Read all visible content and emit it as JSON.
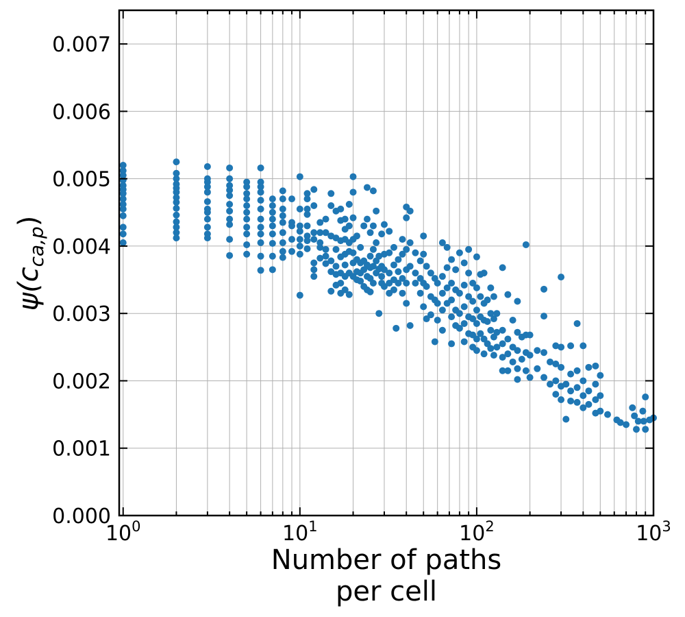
{
  "chart_data": {
    "type": "scatter",
    "xscale": "log",
    "xlim": [
      0.95,
      1000
    ],
    "ylim": [
      0,
      0.0075
    ],
    "grid": true,
    "xlabel_lines": [
      "Number of paths",
      "per cell"
    ],
    "ylabel": "ψ(c_{ca,p})",
    "xticks": [
      {
        "value": 1,
        "base": "10",
        "exp": "0"
      },
      {
        "value": 10,
        "base": "10",
        "exp": "1"
      },
      {
        "value": 100,
        "base": "10",
        "exp": "2"
      },
      {
        "value": 1000,
        "base": "10",
        "exp": "3"
      }
    ],
    "yticks": [
      {
        "value": 0.0,
        "label": "0.000"
      },
      {
        "value": 0.001,
        "label": "0.001"
      },
      {
        "value": 0.002,
        "label": "0.002"
      },
      {
        "value": 0.003,
        "label": "0.003"
      },
      {
        "value": 0.004,
        "label": "0.004"
      },
      {
        "value": 0.005,
        "label": "0.005"
      },
      {
        "value": 0.006,
        "label": "0.006"
      },
      {
        "value": 0.007,
        "label": "0.007"
      }
    ],
    "marker_color": "#1f77b4",
    "points": [
      [
        1,
        0.0052
      ],
      [
        1,
        0.00512
      ],
      [
        1,
        0.00505
      ],
      [
        1,
        0.00498
      ],
      [
        1,
        0.0049
      ],
      [
        1,
        0.00484
      ],
      [
        1,
        0.00478
      ],
      [
        1,
        0.0047
      ],
      [
        1,
        0.00462
      ],
      [
        1,
        0.00455
      ],
      [
        1,
        0.00445
      ],
      [
        1,
        0.00428
      ],
      [
        1,
        0.00418
      ],
      [
        1,
        0.00405
      ],
      [
        2,
        0.00525
      ],
      [
        2,
        0.00508
      ],
      [
        2,
        0.005
      ],
      [
        2,
        0.00492
      ],
      [
        2,
        0.00486
      ],
      [
        2,
        0.0048
      ],
      [
        2,
        0.00472
      ],
      [
        2,
        0.00465
      ],
      [
        2,
        0.00456
      ],
      [
        2,
        0.00446
      ],
      [
        2,
        0.00436
      ],
      [
        2,
        0.00428
      ],
      [
        2,
        0.0042
      ],
      [
        2,
        0.00412
      ],
      [
        3,
        0.00518
      ],
      [
        3,
        0.005
      ],
      [
        3,
        0.00495
      ],
      [
        3,
        0.00488
      ],
      [
        3,
        0.0048
      ],
      [
        3,
        0.00466
      ],
      [
        3,
        0.00455
      ],
      [
        3,
        0.0045
      ],
      [
        3,
        0.0044
      ],
      [
        3,
        0.00428
      ],
      [
        3,
        0.00418
      ],
      [
        3,
        0.00412
      ],
      [
        4,
        0.00516
      ],
      [
        4,
        0.005
      ],
      [
        4,
        0.0049
      ],
      [
        4,
        0.00483
      ],
      [
        4,
        0.00475
      ],
      [
        4,
        0.00462
      ],
      [
        4,
        0.00452
      ],
      [
        4,
        0.0044
      ],
      [
        4,
        0.00432
      ],
      [
        4,
        0.0041
      ],
      [
        4,
        0.00386
      ],
      [
        5,
        0.00495
      ],
      [
        5,
        0.00488
      ],
      [
        5,
        0.00478
      ],
      [
        5,
        0.0047
      ],
      [
        5,
        0.0046
      ],
      [
        5,
        0.0045
      ],
      [
        5,
        0.0044
      ],
      [
        5,
        0.00428
      ],
      [
        5,
        0.00418
      ],
      [
        5,
        0.00402
      ],
      [
        5,
        0.00388
      ],
      [
        6,
        0.00516
      ],
      [
        6,
        0.00495
      ],
      [
        6,
        0.00488
      ],
      [
        6,
        0.0048
      ],
      [
        6,
        0.00468
      ],
      [
        6,
        0.00455
      ],
      [
        6,
        0.0044
      ],
      [
        6,
        0.00428
      ],
      [
        6,
        0.00418
      ],
      [
        6,
        0.00405
      ],
      [
        6,
        0.00385
      ],
      [
        6,
        0.00364
      ],
      [
        7,
        0.0047
      ],
      [
        7,
        0.0046
      ],
      [
        7,
        0.0045
      ],
      [
        7,
        0.0044
      ],
      [
        7,
        0.0043
      ],
      [
        7,
        0.00418
      ],
      [
        7,
        0.00404
      ],
      [
        7,
        0.00385
      ],
      [
        7,
        0.00365
      ],
      [
        8,
        0.00482
      ],
      [
        8,
        0.0047
      ],
      [
        8,
        0.00455
      ],
      [
        8,
        0.00445
      ],
      [
        8,
        0.00435
      ],
      [
        8,
        0.0042
      ],
      [
        8,
        0.00405
      ],
      [
        8,
        0.00392
      ],
      [
        8,
        0.00383
      ],
      [
        9,
        0.0047
      ],
      [
        9,
        0.00435
      ],
      [
        9,
        0.0043
      ],
      [
        9,
        0.0041
      ],
      [
        9,
        0.00392
      ],
      [
        10,
        0.00503
      ],
      [
        10,
        0.00455
      ],
      [
        10,
        0.0043
      ],
      [
        10,
        0.00422
      ],
      [
        10,
        0.0041
      ],
      [
        10,
        0.004
      ],
      [
        10,
        0.00388
      ],
      [
        10,
        0.00327
      ],
      [
        11,
        0.00478
      ],
      [
        11,
        0.0047
      ],
      [
        11,
        0.00455
      ],
      [
        11,
        0.00447
      ],
      [
        11,
        0.0043
      ],
      [
        11,
        0.00415
      ],
      [
        11,
        0.00408
      ],
      [
        11,
        0.00396
      ],
      [
        12,
        0.00484
      ],
      [
        12,
        0.0046
      ],
      [
        12,
        0.0042
      ],
      [
        12,
        0.0041
      ],
      [
        12,
        0.00375
      ],
      [
        12,
        0.00365
      ],
      [
        12,
        0.00355
      ],
      [
        13,
        0.00435
      ],
      [
        13,
        0.0042
      ],
      [
        13,
        0.00405
      ],
      [
        13,
        0.00398
      ],
      [
        13,
        0.00382
      ],
      [
        14,
        0.0044
      ],
      [
        14,
        0.0042
      ],
      [
        14,
        0.00395
      ],
      [
        14,
        0.00385
      ],
      [
        14,
        0.00374
      ],
      [
        15,
        0.00478
      ],
      [
        15,
        0.0046
      ],
      [
        15,
        0.00415
      ],
      [
        15,
        0.00378
      ],
      [
        15,
        0.00362
      ],
      [
        15,
        0.00333
      ],
      [
        16,
        0.00452
      ],
      [
        16,
        0.00412
      ],
      [
        16,
        0.00395
      ],
      [
        16,
        0.0037
      ],
      [
        16,
        0.00358
      ],
      [
        16,
        0.00342
      ],
      [
        17,
        0.00455
      ],
      [
        17,
        0.00438
      ],
      [
        17,
        0.00408
      ],
      [
        17,
        0.00384
      ],
      [
        17,
        0.0036
      ],
      [
        17,
        0.00345
      ],
      [
        17,
        0.0033
      ],
      [
        18,
        0.0044
      ],
      [
        18,
        0.00425
      ],
      [
        18,
        0.0041
      ],
      [
        18,
        0.00388
      ],
      [
        18,
        0.00372
      ],
      [
        18,
        0.00355
      ],
      [
        18,
        0.00335
      ],
      [
        19,
        0.00462
      ],
      [
        19,
        0.0043
      ],
      [
        19,
        0.00405
      ],
      [
        19,
        0.00392
      ],
      [
        19,
        0.0036
      ],
      [
        19,
        0.00328
      ],
      [
        20,
        0.00503
      ],
      [
        20,
        0.0048
      ],
      [
        20,
        0.00442
      ],
      [
        20,
        0.0041
      ],
      [
        20,
        0.0039
      ],
      [
        20,
        0.00375
      ],
      [
        20,
        0.00355
      ],
      [
        21,
        0.00415
      ],
      [
        21,
        0.0038
      ],
      [
        21,
        0.00362
      ],
      [
        21,
        0.0035
      ],
      [
        22,
        0.00398
      ],
      [
        22,
        0.00375
      ],
      [
        22,
        0.0036
      ],
      [
        22,
        0.00348
      ],
      [
        23,
        0.0043
      ],
      [
        23,
        0.00378
      ],
      [
        23,
        0.00365
      ],
      [
        23,
        0.0034
      ],
      [
        24,
        0.00487
      ],
      [
        24,
        0.0044
      ],
      [
        24,
        0.00372
      ],
      [
        24,
        0.00355
      ],
      [
        24,
        0.00335
      ],
      [
        25,
        0.0042
      ],
      [
        25,
        0.00385
      ],
      [
        25,
        0.00368
      ],
      [
        25,
        0.00352
      ],
      [
        25,
        0.00332
      ],
      [
        26,
        0.00482
      ],
      [
        26,
        0.0043
      ],
      [
        26,
        0.00395
      ],
      [
        26,
        0.0037
      ],
      [
        26,
        0.00345
      ],
      [
        27,
        0.00452
      ],
      [
        27,
        0.00405
      ],
      [
        27,
        0.00378
      ],
      [
        27,
        0.0036
      ],
      [
        28,
        0.00385
      ],
      [
        28,
        0.00366
      ],
      [
        28,
        0.003
      ],
      [
        29,
        0.00418
      ],
      [
        29,
        0.0037
      ],
      [
        29,
        0.00355
      ],
      [
        29,
        0.00345
      ],
      [
        30,
        0.00432
      ],
      [
        30,
        0.00388
      ],
      [
        30,
        0.00365
      ],
      [
        30,
        0.0034
      ],
      [
        32,
        0.00422
      ],
      [
        32,
        0.0039
      ],
      [
        32,
        0.0036
      ],
      [
        32,
        0.00345
      ],
      [
        32,
        0.0033
      ],
      [
        34,
        0.00398
      ],
      [
        34,
        0.00372
      ],
      [
        34,
        0.0035
      ],
      [
        34,
        0.00335
      ],
      [
        35,
        0.00278
      ],
      [
        36,
        0.0038
      ],
      [
        36,
        0.00362
      ],
      [
        36,
        0.00345
      ],
      [
        38,
        0.0041
      ],
      [
        38,
        0.00388
      ],
      [
        38,
        0.00352
      ],
      [
        38,
        0.0033
      ],
      [
        40,
        0.00458
      ],
      [
        40,
        0.00442
      ],
      [
        40,
        0.00395
      ],
      [
        40,
        0.00365
      ],
      [
        40,
        0.00345
      ],
      [
        40,
        0.00315
      ],
      [
        42,
        0.00452
      ],
      [
        42,
        0.00405
      ],
      [
        42,
        0.0037
      ],
      [
        42,
        0.00282
      ],
      [
        45,
        0.0039
      ],
      [
        45,
        0.0036
      ],
      [
        45,
        0.00345
      ],
      [
        48,
        0.00378
      ],
      [
        48,
        0.00352
      ],
      [
        48,
        0.0033
      ],
      [
        50,
        0.00415
      ],
      [
        50,
        0.00388
      ],
      [
        50,
        0.00345
      ],
      [
        50,
        0.0031
      ],
      [
        52,
        0.0037
      ],
      [
        52,
        0.0034
      ],
      [
        52,
        0.00292
      ],
      [
        55,
        0.0036
      ],
      [
        55,
        0.00325
      ],
      [
        55,
        0.00298
      ],
      [
        58,
        0.00352
      ],
      [
        58,
        0.0032
      ],
      [
        58,
        0.00258
      ],
      [
        60,
        0.00345
      ],
      [
        60,
        0.00315
      ],
      [
        60,
        0.0029
      ],
      [
        64,
        0.00405
      ],
      [
        64,
        0.00355
      ],
      [
        64,
        0.0033
      ],
      [
        64,
        0.00305
      ],
      [
        64,
        0.00275
      ],
      [
        68,
        0.00398
      ],
      [
        68,
        0.00368
      ],
      [
        68,
        0.00338
      ],
      [
        68,
        0.00315
      ],
      [
        72,
        0.0038
      ],
      [
        72,
        0.00345
      ],
      [
        72,
        0.0032
      ],
      [
        72,
        0.00295
      ],
      [
        72,
        0.00255
      ],
      [
        76,
        0.00365
      ],
      [
        76,
        0.00335
      ],
      [
        76,
        0.00305
      ],
      [
        76,
        0.00282
      ],
      [
        80,
        0.0039
      ],
      [
        80,
        0.0033
      ],
      [
        80,
        0.003
      ],
      [
        80,
        0.00278
      ],
      [
        85,
        0.00375
      ],
      [
        85,
        0.00342
      ],
      [
        85,
        0.0031
      ],
      [
        85,
        0.00285
      ],
      [
        85,
        0.00258
      ],
      [
        90,
        0.00395
      ],
      [
        90,
        0.0036
      ],
      [
        90,
        0.00325
      ],
      [
        90,
        0.00295
      ],
      [
        90,
        0.0027
      ],
      [
        95,
        0.00345
      ],
      [
        95,
        0.00318
      ],
      [
        95,
        0.00292
      ],
      [
        95,
        0.00268
      ],
      [
        95,
        0.0025
      ],
      [
        100,
        0.00384
      ],
      [
        100,
        0.00338
      ],
      [
        100,
        0.00305
      ],
      [
        100,
        0.00285
      ],
      [
        100,
        0.00262
      ],
      [
        100,
        0.00245
      ],
      [
        105,
        0.00358
      ],
      [
        105,
        0.00325
      ],
      [
        105,
        0.00295
      ],
      [
        105,
        0.0027
      ],
      [
        110,
        0.0036
      ],
      [
        110,
        0.00315
      ],
      [
        110,
        0.0029
      ],
      [
        110,
        0.00262
      ],
      [
        110,
        0.0024
      ],
      [
        115,
        0.0032
      ],
      [
        115,
        0.00288
      ],
      [
        115,
        0.00255
      ],
      [
        120,
        0.00338
      ],
      [
        120,
        0.003
      ],
      [
        120,
        0.00275
      ],
      [
        120,
        0.00248
      ],
      [
        125,
        0.00325
      ],
      [
        125,
        0.00292
      ],
      [
        125,
        0.00265
      ],
      [
        125,
        0.00238
      ],
      [
        130,
        0.003
      ],
      [
        130,
        0.00272
      ],
      [
        130,
        0.0025
      ],
      [
        140,
        0.00368
      ],
      [
        140,
        0.00275
      ],
      [
        140,
        0.00255
      ],
      [
        140,
        0.00235
      ],
      [
        140,
        0.00215
      ],
      [
        150,
        0.00328
      ],
      [
        150,
        0.00262
      ],
      [
        150,
        0.0024
      ],
      [
        150,
        0.00215
      ],
      [
        160,
        0.0029
      ],
      [
        160,
        0.0025
      ],
      [
        160,
        0.00228
      ],
      [
        170,
        0.00318
      ],
      [
        170,
        0.00272
      ],
      [
        170,
        0.00245
      ],
      [
        170,
        0.00218
      ],
      [
        170,
        0.00202
      ],
      [
        180,
        0.00265
      ],
      [
        180,
        0.00232
      ],
      [
        190,
        0.00402
      ],
      [
        190,
        0.00268
      ],
      [
        190,
        0.00242
      ],
      [
        190,
        0.00215
      ],
      [
        200,
        0.00268
      ],
      [
        200,
        0.00238
      ],
      [
        200,
        0.00205
      ],
      [
        220,
        0.00245
      ],
      [
        220,
        0.00218
      ],
      [
        240,
        0.00336
      ],
      [
        240,
        0.00296
      ],
      [
        240,
        0.00242
      ],
      [
        240,
        0.00205
      ],
      [
        260,
        0.00228
      ],
      [
        260,
        0.00195
      ],
      [
        280,
        0.00252
      ],
      [
        280,
        0.00225
      ],
      [
        280,
        0.002
      ],
      [
        280,
        0.0018
      ],
      [
        300,
        0.00354
      ],
      [
        300,
        0.0025
      ],
      [
        300,
        0.0022
      ],
      [
        300,
        0.00192
      ],
      [
        300,
        0.00172
      ],
      [
        320,
        0.00195
      ],
      [
        320,
        0.00143
      ],
      [
        340,
        0.00252
      ],
      [
        340,
        0.0021
      ],
      [
        340,
        0.00185
      ],
      [
        340,
        0.0017
      ],
      [
        370,
        0.00285
      ],
      [
        370,
        0.00215
      ],
      [
        370,
        0.0019
      ],
      [
        370,
        0.00168
      ],
      [
        400,
        0.00252
      ],
      [
        400,
        0.002
      ],
      [
        400,
        0.00178
      ],
      [
        400,
        0.0016
      ],
      [
        430,
        0.0022
      ],
      [
        430,
        0.00185
      ],
      [
        430,
        0.00165
      ],
      [
        470,
        0.00222
      ],
      [
        470,
        0.00195
      ],
      [
        470,
        0.00172
      ],
      [
        470,
        0.00152
      ],
      [
        500,
        0.00208
      ],
      [
        500,
        0.00178
      ],
      [
        500,
        0.00155
      ],
      [
        550,
        0.0015
      ],
      [
        620,
        0.00142
      ],
      [
        650,
        0.00138
      ],
      [
        700,
        0.00135
      ],
      [
        760,
        0.0016
      ],
      [
        780,
        0.00148
      ],
      [
        800,
        0.00128
      ],
      [
        820,
        0.0014
      ],
      [
        870,
        0.00155
      ],
      [
        880,
        0.0014
      ],
      [
        900,
        0.00128
      ],
      [
        900,
        0.00176
      ],
      [
        950,
        0.00142
      ],
      [
        1000,
        0.00145
      ]
    ]
  }
}
